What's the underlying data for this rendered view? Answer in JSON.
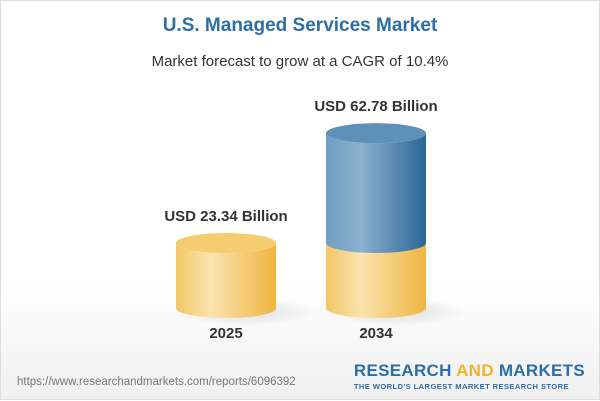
{
  "chart_data": {
    "type": "bar",
    "title": "U.S. Managed Services Market",
    "subtitle": "Market forecast to grow at a CAGR of 10.4%",
    "categories": [
      "2025",
      "2034"
    ],
    "values": [
      23.34,
      62.78
    ],
    "unit": "USD Billion",
    "data_labels": [
      "USD 23.34 Billion",
      "USD 62.78 Billion"
    ],
    "style": "3d-cylinder",
    "colors": {
      "base": "#f2c55a",
      "growth": "#3f7aab"
    }
  },
  "footer": {
    "url": "https://www.researchandmarkets.com/reports/6096392",
    "brand_part1": "RESEARCH ",
    "brand_part2": "AND",
    "brand_part3": " MARKETS",
    "tagline": "THE WORLD'S LARGEST MARKET RESEARCH STORE"
  }
}
